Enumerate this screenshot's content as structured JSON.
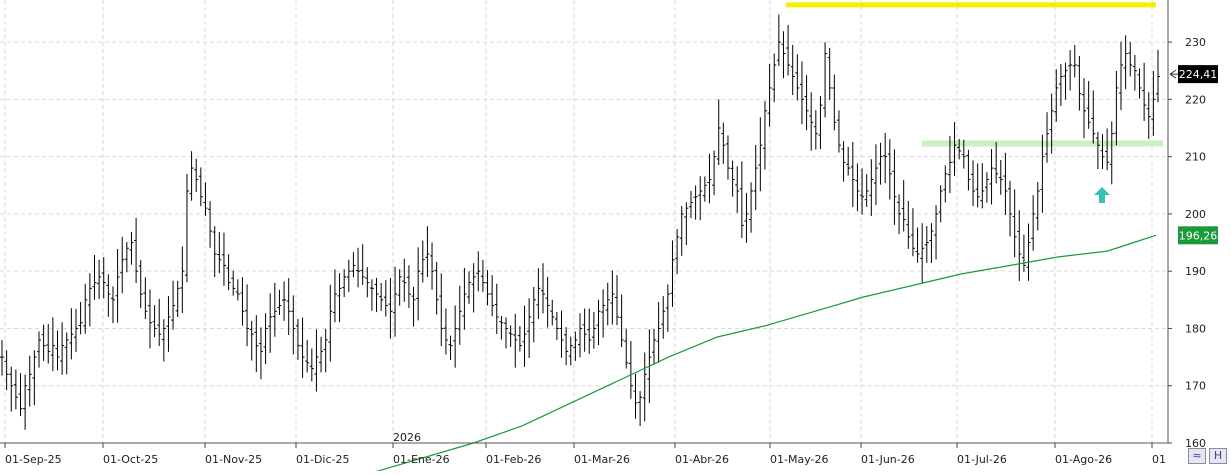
{
  "chart_data": {
    "type": "ohlc",
    "ylim": [
      160,
      237
    ],
    "y_ticks": [
      "160",
      "170",
      "180",
      "190",
      "200",
      "210",
      "220",
      "230"
    ],
    "x_ticks": [
      "01-Sep-25",
      "01-Oct-25",
      "01-Nov-25",
      "01-Dic-25",
      "01-Ene-26",
      "01-Feb-26",
      "01-Mar-26",
      "01-Abr-26",
      "01-May-26",
      "01-Jun-26",
      "01-Jul-26",
      "01-Ago-26",
      "01"
    ],
    "year_marker": "2026",
    "last_price_label": "224,41",
    "last_price": 224.41,
    "ma_label": "196,26",
    "ma_value": 196.26,
    "resistance_level": 236.5,
    "support_level": 212.3,
    "colors": {
      "bars": "#000000",
      "ma_line": "#1a9a3a",
      "resistance": "#f2f200",
      "support": "#c8f0c0",
      "arrow": "#38c0b0",
      "grid": "#d9d9d9",
      "price_tag_bg": "#000000",
      "ma_tag_bg": "#1a9a3a"
    },
    "ma_series": [
      [
        0,
        155
      ],
      [
        8,
        160
      ],
      [
        12,
        163
      ],
      [
        16,
        167
      ],
      [
        20,
        171
      ],
      [
        24,
        175
      ],
      [
        28,
        178.5
      ],
      [
        32,
        180.5
      ],
      [
        36,
        183
      ],
      [
        40,
        185.5
      ],
      [
        44,
        187.5
      ],
      [
        48,
        189.5
      ],
      [
        52,
        191
      ],
      [
        56,
        192.5
      ],
      [
        60,
        193.5
      ],
      [
        64,
        196.26
      ]
    ],
    "price_series": [
      175,
      172,
      170,
      168,
      166,
      170,
      172,
      175,
      178,
      177,
      176,
      177,
      175,
      177,
      178,
      179,
      180,
      181,
      185,
      187,
      188,
      189,
      188,
      186,
      185,
      189,
      192,
      194,
      195,
      190,
      186,
      183,
      181,
      180,
      179,
      180,
      182,
      184,
      187,
      190,
      204,
      208,
      206,
      203,
      201,
      197,
      193,
      192,
      191,
      188,
      187,
      186,
      183,
      180,
      179,
      177,
      176,
      180,
      182,
      183,
      184,
      185,
      183,
      180,
      177,
      175,
      174,
      173,
      175,
      176,
      178,
      183,
      186,
      187,
      189,
      190,
      191,
      190,
      189,
      188,
      187,
      186,
      185,
      184,
      183,
      186,
      189,
      188,
      186,
      185,
      190,
      192,
      193,
      190,
      185,
      180,
      178,
      177,
      180,
      183,
      186,
      188,
      189,
      190,
      188,
      186,
      184,
      182,
      181,
      180,
      179,
      178,
      177,
      179,
      182,
      185,
      187,
      186,
      184,
      182,
      180,
      178,
      176,
      177,
      178,
      180,
      179,
      178,
      180,
      183,
      184,
      185,
      186,
      182,
      178,
      174,
      170,
      167,
      168,
      172,
      175,
      178,
      180,
      183,
      186,
      192,
      196,
      200,
      201,
      202,
      203,
      204,
      205,
      206,
      210,
      215,
      212,
      208,
      206,
      204,
      198,
      200,
      204,
      208,
      212,
      218,
      222,
      226,
      230,
      228,
      226,
      224,
      222,
      220,
      218,
      216,
      214,
      219,
      228,
      222,
      216,
      212,
      209,
      208,
      206,
      204,
      203,
      204,
      206,
      208,
      210,
      210,
      207,
      203,
      200,
      199,
      196,
      194,
      193,
      194,
      195,
      197,
      200,
      204,
      207,
      209,
      212,
      211,
      210,
      206,
      204,
      203,
      204,
      206,
      208,
      207,
      206,
      204,
      200,
      196,
      193,
      191,
      195,
      200,
      204,
      210,
      214,
      218,
      222,
      224,
      225,
      226,
      226,
      221,
      218,
      216,
      214,
      212,
      210,
      209,
      214,
      222,
      226,
      228,
      226,
      225,
      222,
      219,
      217,
      220,
      224
    ]
  }
}
